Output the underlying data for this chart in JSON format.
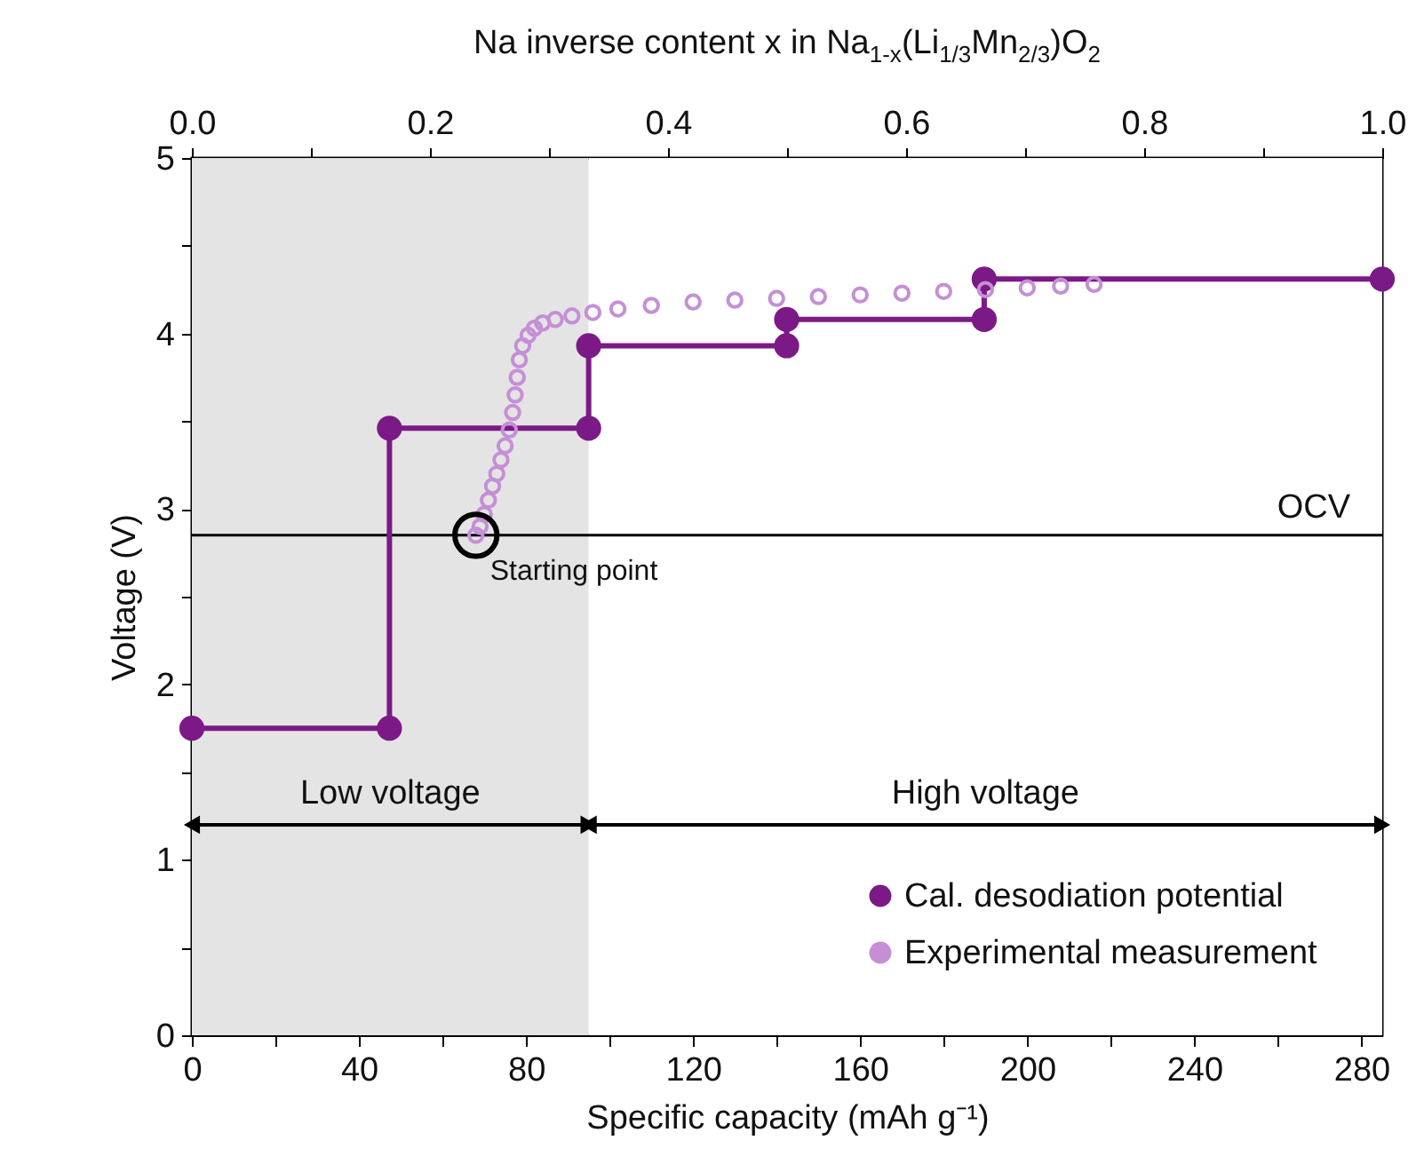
{
  "chart_data": {
    "type": "line",
    "xlabel": "Specific capacity (mAh g⁻¹)",
    "ylabel": "Voltage (V)",
    "x2label": "Na inverse content x in Na$_{1-x}$(Li$_{1/3}$Mn$_{2/3}$)O$_{2}$",
    "xlim": [
      0,
      285
    ],
    "ylim": [
      0,
      5
    ],
    "xticks": [
      0,
      {
        "value": 20,
        "label": null
      },
      40,
      {
        "value": 60,
        "label": null
      },
      80,
      {
        "value": 100,
        "label": null
      },
      120,
      {
        "value": 140,
        "label": null
      },
      160,
      {
        "value": 180,
        "label": null
      },
      200,
      {
        "value": 220,
        "label": null
      },
      240,
      {
        "value": 260,
        "label": null
      },
      280
    ],
    "yticks": [
      0,
      {
        "value": 0.5,
        "label": null
      },
      1,
      {
        "value": 1.5,
        "label": null
      },
      2,
      {
        "value": 2.5,
        "label": null
      },
      3,
      {
        "value": 3.5,
        "label": null
      },
      4,
      {
        "value": 4.5,
        "label": null
      },
      5
    ],
    "x2lim": [
      0,
      1
    ],
    "x2ticks": [
      {
        "value": 0,
        "label": "0.0"
      },
      {
        "value": 0.1,
        "label": null
      },
      {
        "value": 0.2,
        "label": "0.2"
      },
      {
        "value": 0.3,
        "label": null
      },
      {
        "value": 0.4,
        "label": "0.4"
      },
      {
        "value": 0.5,
        "label": null
      },
      {
        "value": 0.6,
        "label": "0.6"
      },
      {
        "value": 0.7,
        "label": null
      },
      {
        "value": 0.8,
        "label": "0.8"
      },
      {
        "value": 0.9,
        "label": null
      },
      {
        "value": 1,
        "label": "1.0"
      }
    ],
    "series": [
      {
        "name": "Cal. desodiation potential",
        "marker": "circle",
        "color": "#7b1a87",
        "x": [
          0,
          47.3,
          47.3,
          95,
          95,
          142.4,
          142.4,
          189.7,
          189.7,
          285
        ],
        "values": [
          1.75,
          1.75,
          3.46,
          3.46,
          3.93,
          3.93,
          4.08,
          4.08,
          4.31,
          4.31
        ]
      },
      {
        "name": "Experimental measurement",
        "type": "scatter",
        "marker": "circle",
        "color": "#c58fd6",
        "x": [
          68,
          69,
          70,
          71,
          72,
          73,
          74,
          75,
          76,
          76.8,
          77.4,
          77.9,
          78.4,
          79.2,
          80.5,
          82,
          84,
          87,
          91,
          96,
          102,
          110,
          120,
          130,
          140,
          150,
          160,
          170,
          180,
          190,
          200,
          208,
          216
        ],
        "values": [
          2.85,
          2.9,
          2.97,
          3.05,
          3.13,
          3.2,
          3.28,
          3.36,
          3.45,
          3.55,
          3.65,
          3.75,
          3.85,
          3.93,
          3.99,
          4.03,
          4.06,
          4.08,
          4.1,
          4.12,
          4.14,
          4.16,
          4.18,
          4.19,
          4.2,
          4.21,
          4.22,
          4.23,
          4.24,
          4.25,
          4.26,
          4.27,
          4.28
        ]
      }
    ],
    "ref_lines": [
      {
        "axis": "y",
        "value": 2.85,
        "label": "OCV",
        "color": "#000000"
      }
    ],
    "bands": [
      {
        "axis": "x",
        "from": 0,
        "to": 95,
        "label": "Low voltage",
        "color": "#e4e4e4"
      },
      {
        "axis": "x",
        "from": 95,
        "to": 285,
        "label": "High voltage",
        "color": "#ffffff"
      }
    ],
    "annotations": [
      {
        "text": "Starting point",
        "x": 68,
        "y": 2.85
      }
    ],
    "legend": "bottom right"
  }
}
